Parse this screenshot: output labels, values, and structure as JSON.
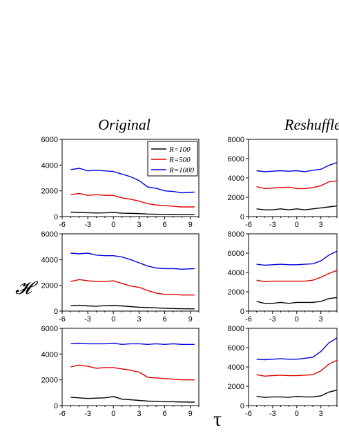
{
  "figure": {
    "y_symbol": "𝓗",
    "x_symbol": "τ",
    "colors": {
      "R=100": "#000000",
      "R=500": "#e00000",
      "R=1000": "#0000e0"
    },
    "legend": [
      "R=100",
      "R=500",
      "R=1000"
    ]
  },
  "chart_data": [
    {
      "type": "line",
      "title": "Original",
      "xlim": [
        -6,
        10
      ],
      "ylim": [
        0,
        6000
      ],
      "xticks": [
        "-6",
        "-3",
        "0",
        "3",
        "6",
        "9"
      ],
      "yticks": [
        "0",
        "2000",
        "4000",
        "6000"
      ],
      "legend": "top-right",
      "grid": false,
      "series": [
        {
          "name": "R=100",
          "x": [
            -5,
            -4,
            -3,
            -2,
            -1,
            0,
            1,
            2,
            3,
            4,
            5,
            6,
            7,
            8,
            9.5
          ],
          "values": [
            350,
            320,
            300,
            280,
            290,
            320,
            260,
            250,
            230,
            200,
            180,
            170,
            160,
            150,
            150
          ]
        },
        {
          "name": "R=500",
          "x": [
            -5,
            -4,
            -3,
            -2,
            -1,
            0,
            1,
            2,
            3,
            4,
            5,
            6,
            7,
            8,
            9.5
          ],
          "values": [
            1700,
            1800,
            1650,
            1700,
            1650,
            1650,
            1450,
            1350,
            1200,
            1000,
            900,
            850,
            800,
            750,
            750
          ]
        },
        {
          "name": "R=1000",
          "x": [
            -5,
            -4,
            -3,
            -2,
            -1,
            0,
            1,
            2,
            3,
            4,
            5,
            6,
            7,
            8,
            9.5
          ],
          "values": [
            3650,
            3750,
            3550,
            3600,
            3550,
            3500,
            3300,
            3100,
            2800,
            2300,
            2200,
            2000,
            1950,
            1850,
            1900
          ]
        }
      ]
    },
    {
      "type": "line",
      "title": "",
      "xlim": [
        -6,
        10
      ],
      "ylim": [
        0,
        6000
      ],
      "xticks": [
        "-6",
        "-3",
        "0",
        "3",
        "6",
        "9"
      ],
      "yticks": [
        "0",
        "2000",
        "4000",
        "6000"
      ],
      "grid": false,
      "series": [
        {
          "name": "R=100",
          "x": [
            -5,
            -4,
            -3,
            -2,
            -1,
            0,
            1,
            2,
            3,
            4,
            5,
            6,
            7,
            8,
            9.5
          ],
          "values": [
            420,
            450,
            400,
            380,
            420,
            430,
            400,
            350,
            300,
            280,
            250,
            220,
            200,
            180,
            170
          ]
        },
        {
          "name": "R=500",
          "x": [
            -5,
            -4,
            -3,
            -2,
            -1,
            0,
            1,
            2,
            3,
            4,
            5,
            6,
            7,
            8,
            9.5
          ],
          "values": [
            2300,
            2450,
            2350,
            2300,
            2300,
            2350,
            2150,
            1950,
            1850,
            1600,
            1400,
            1300,
            1300,
            1250,
            1250
          ]
        },
        {
          "name": "R=1000",
          "x": [
            -5,
            -4,
            -3,
            -2,
            -1,
            0,
            1,
            2,
            3,
            4,
            5,
            6,
            7,
            8,
            9.5
          ],
          "values": [
            4500,
            4450,
            4500,
            4350,
            4300,
            4300,
            4200,
            4000,
            3750,
            3500,
            3350,
            3300,
            3300,
            3250,
            3300
          ]
        }
      ]
    },
    {
      "type": "line",
      "title": "",
      "xlim": [
        -6,
        10
      ],
      "ylim": [
        0,
        6000
      ],
      "xticks": [
        "-6",
        "-3",
        "0",
        "3",
        "6",
        "9"
      ],
      "yticks": [
        "0",
        "2000",
        "4000",
        "6000"
      ],
      "grid": false,
      "series": [
        {
          "name": "R=100",
          "x": [
            -5,
            -4,
            -3,
            -2,
            -1,
            0,
            1,
            2,
            3,
            4,
            5,
            6,
            7,
            8,
            9.5
          ],
          "values": [
            650,
            600,
            550,
            580,
            600,
            700,
            500,
            450,
            400,
            350,
            330,
            300,
            300,
            280,
            270
          ]
        },
        {
          "name": "R=500",
          "x": [
            -5,
            -4,
            -3,
            -2,
            -1,
            0,
            1,
            2,
            3,
            4,
            5,
            6,
            7,
            8,
            9.5
          ],
          "values": [
            3000,
            3150,
            3050,
            2900,
            2950,
            2950,
            2850,
            2750,
            2600,
            2200,
            2150,
            2100,
            2050,
            2000,
            2000
          ]
        },
        {
          "name": "R=1000",
          "x": [
            -5,
            -4,
            -3,
            -2,
            -1,
            0,
            1,
            2,
            3,
            4,
            5,
            6,
            7,
            8,
            9.5
          ],
          "values": [
            4800,
            4850,
            4800,
            4800,
            4800,
            4850,
            4750,
            4800,
            4800,
            4750,
            4800,
            4750,
            4800,
            4750,
            4750
          ]
        }
      ]
    },
    {
      "type": "line",
      "title": "Reshuffle",
      "xlim": [
        -6,
        5
      ],
      "ylim": [
        0,
        8000
      ],
      "xticks": [
        "-6",
        "-3",
        "0",
        "3"
      ],
      "yticks": [
        "0",
        "2000",
        "4000",
        "6000",
        "8000"
      ],
      "grid": false,
      "series": [
        {
          "name": "R=100",
          "x": [
            -5,
            -4,
            -3,
            -2,
            -1,
            0,
            1,
            2,
            3,
            4,
            5
          ],
          "values": [
            800,
            700,
            700,
            800,
            700,
            800,
            700,
            800,
            900,
            1000,
            1100
          ]
        },
        {
          "name": "R=500",
          "x": [
            -5,
            -4,
            -3,
            -2,
            -1,
            0,
            1,
            2,
            3,
            4,
            5
          ],
          "values": [
            3100,
            2900,
            2950,
            3000,
            3050,
            2900,
            2900,
            3000,
            3200,
            3600,
            3700
          ]
        },
        {
          "name": "R=1000",
          "x": [
            -5,
            -4,
            -3,
            -2,
            -1,
            0,
            1,
            2,
            3,
            4,
            5
          ],
          "values": [
            4750,
            4650,
            4700,
            4750,
            4700,
            4750,
            4650,
            4800,
            4900,
            5300,
            5600
          ]
        }
      ]
    },
    {
      "type": "line",
      "title": "",
      "xlim": [
        -6,
        5
      ],
      "ylim": [
        0,
        8000
      ],
      "xticks": [
        "-6",
        "-3",
        "0",
        "3"
      ],
      "yticks": [
        "0",
        "2000",
        "4000",
        "6000",
        "8000"
      ],
      "grid": false,
      "series": [
        {
          "name": "R=100",
          "x": [
            -5,
            -4,
            -3,
            -2,
            -1,
            0,
            1,
            2,
            3,
            4,
            5
          ],
          "values": [
            1000,
            800,
            800,
            900,
            800,
            900,
            900,
            900,
            1000,
            1300,
            1400
          ]
        },
        {
          "name": "R=500",
          "x": [
            -5,
            -4,
            -3,
            -2,
            -1,
            0,
            1,
            2,
            3,
            4,
            5
          ],
          "values": [
            3200,
            3050,
            3100,
            3100,
            3100,
            3100,
            3100,
            3200,
            3500,
            3900,
            4200
          ]
        },
        {
          "name": "R=1000",
          "x": [
            -5,
            -4,
            -3,
            -2,
            -1,
            0,
            1,
            2,
            3,
            4,
            5
          ],
          "values": [
            4850,
            4750,
            4800,
            4850,
            4800,
            4800,
            4850,
            4900,
            5200,
            5800,
            6200
          ]
        }
      ]
    },
    {
      "type": "line",
      "title": "",
      "xlim": [
        -6,
        5
      ],
      "ylim": [
        0,
        8000
      ],
      "xticks": [
        "-6",
        "-3",
        "0",
        "3"
      ],
      "yticks": [
        "0",
        "2000",
        "4000",
        "6000",
        "8000"
      ],
      "grid": false,
      "series": [
        {
          "name": "R=100",
          "x": [
            -5,
            -4,
            -3,
            -2,
            -1,
            0,
            1,
            2,
            3,
            4,
            5
          ],
          "values": [
            950,
            850,
            900,
            900,
            850,
            950,
            900,
            900,
            1000,
            1400,
            1600
          ]
        },
        {
          "name": "R=500",
          "x": [
            -5,
            -4,
            -3,
            -2,
            -1,
            0,
            1,
            2,
            3,
            4,
            5
          ],
          "values": [
            3200,
            3050,
            3100,
            3150,
            3100,
            3100,
            3150,
            3200,
            3600,
            4300,
            4700
          ]
        },
        {
          "name": "R=1000",
          "x": [
            -5,
            -4,
            -3,
            -2,
            -1,
            0,
            1,
            2,
            3,
            4,
            5
          ],
          "values": [
            4800,
            4750,
            4800,
            4850,
            4800,
            4800,
            4900,
            5000,
            5600,
            6500,
            7000
          ]
        }
      ]
    }
  ]
}
